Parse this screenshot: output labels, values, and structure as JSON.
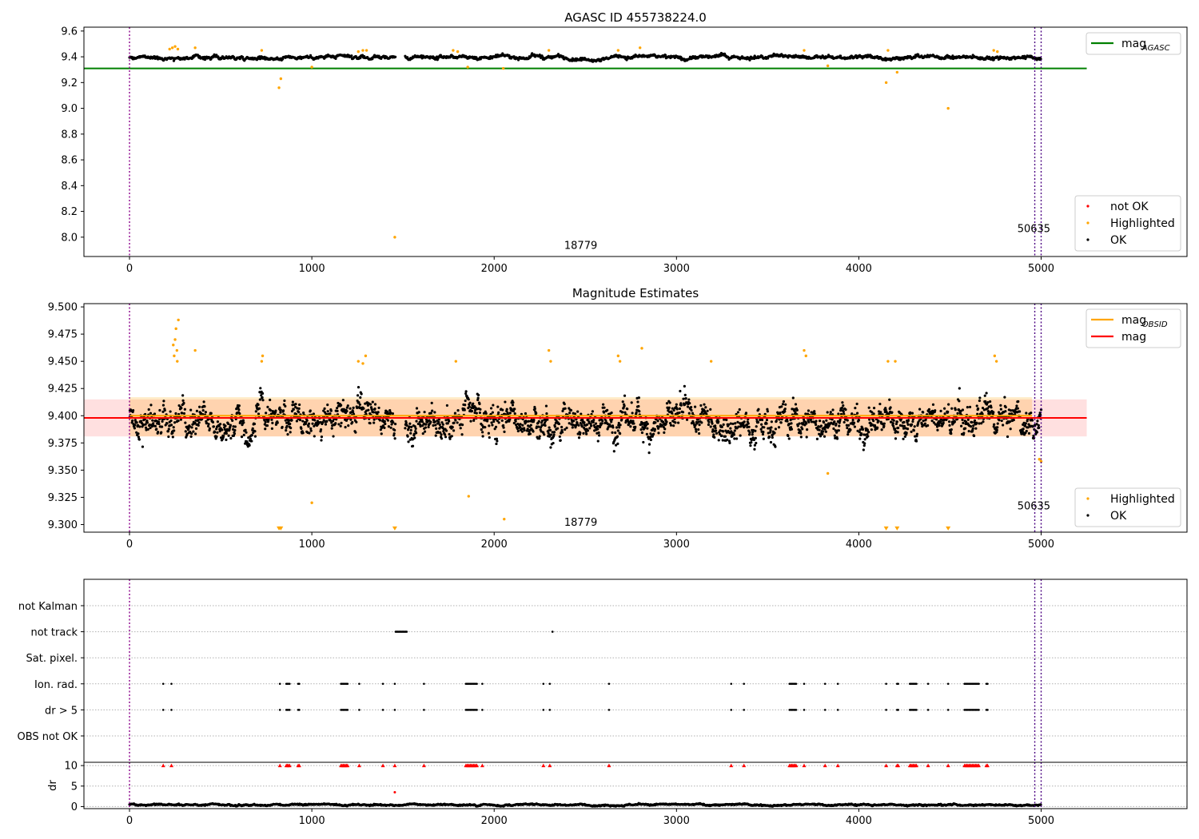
{
  "chart_data": [
    {
      "type": "scatter",
      "title": "AGASC ID 455738224.0",
      "xlim": [
        -250,
        5800
      ],
      "ylim": [
        7.85,
        9.63
      ],
      "xticks": [
        0,
        1000,
        2000,
        3000,
        4000,
        5000
      ],
      "yticks": [
        8.0,
        8.2,
        8.4,
        8.6,
        8.8,
        9.0,
        9.2,
        9.4,
        9.6
      ],
      "vlines": [
        0,
        4965,
        5000
      ],
      "hline": {
        "name": "mag_AGASC",
        "y": 9.31,
        "x_range": [
          -250,
          5250
        ],
        "color": "#008000"
      },
      "annotations": [
        {
          "text": "18779",
          "x": 2475,
          "y": 7.91
        },
        {
          "text": "50635",
          "x": 4960,
          "y": 8.04
        }
      ],
      "legend_top": {
        "placement": "top-right",
        "entries": [
          {
            "label": "mag",
            "sub": "AGASC",
            "color": "#008000"
          }
        ]
      },
      "legend_bottom": {
        "placement": "bottom-right",
        "entries": [
          {
            "label": "not OK",
            "color": "#ff0000"
          },
          {
            "label": "Highlighted",
            "color": "#ffa500"
          },
          {
            "label": "OK",
            "color": "#000000"
          }
        ]
      },
      "series": [
        {
          "name": "OK",
          "color": "#000000",
          "trend": {
            "base": 9.397,
            "noise": 0.022,
            "gaps": [
              [
                1460,
                1510
              ]
            ]
          }
        },
        {
          "name": "Highlighted",
          "color": "#ffa500",
          "points": [
            [
              220,
              9.46
            ],
            [
              235,
              9.47
            ],
            [
              250,
              9.48
            ],
            [
              265,
              9.46
            ],
            [
              360,
              9.47
            ],
            [
              725,
              9.45
            ],
            [
              820,
              9.16
            ],
            [
              830,
              9.23
            ],
            [
              1000,
              9.32
            ],
            [
              1255,
              9.44
            ],
            [
              1280,
              9.45
            ],
            [
              1300,
              9.45
            ],
            [
              1455,
              8.0
            ],
            [
              1775,
              9.45
            ],
            [
              1800,
              9.44
            ],
            [
              1855,
              9.32
            ],
            [
              2050,
              9.31
            ],
            [
              2300,
              9.45
            ],
            [
              2680,
              9.45
            ],
            [
              2800,
              9.47
            ],
            [
              3830,
              9.33
            ],
            [
              3700,
              9.45
            ],
            [
              4150,
              9.2
            ],
            [
              4160,
              9.45
            ],
            [
              4210,
              9.28
            ],
            [
              4490,
              9.0
            ],
            [
              4740,
              9.45
            ],
            [
              4760,
              9.44
            ]
          ]
        },
        {
          "name": "not OK",
          "color": "#ff0000",
          "points": []
        }
      ]
    },
    {
      "type": "scatter",
      "title": "Magnitude Estimates",
      "xlim": [
        -250,
        5800
      ],
      "ylim": [
        9.293,
        9.503
      ],
      "xticks": [
        0,
        1000,
        2000,
        3000,
        4000,
        5000
      ],
      "yticks": [
        9.3,
        9.325,
        9.35,
        9.375,
        9.4,
        9.425,
        9.45,
        9.475,
        9.5
      ],
      "vlines": [
        0,
        4965,
        5000
      ],
      "mag": {
        "y": 9.398,
        "band": [
          9.381,
          9.415
        ],
        "x_range": [
          -250,
          5250
        ],
        "color": "#ff0000"
      },
      "mag_obsid": {
        "y": 9.4,
        "band": [
          9.381,
          9.417
        ],
        "x_range": [
          0,
          4950
        ],
        "color": "#ffa500"
      },
      "annotations": [
        {
          "text": "18779",
          "x": 2475,
          "y": 9.299
        },
        {
          "text": "50635",
          "x": 4960,
          "y": 9.314
        }
      ],
      "legend_top": {
        "placement": "top-right",
        "entries": [
          {
            "label": "mag",
            "sub": "OBSID",
            "color": "#ffa500"
          },
          {
            "label": "mag",
            "sub": "",
            "color": "#ff0000"
          }
        ]
      },
      "legend_bottom": {
        "placement": "bottom-right",
        "entries": [
          {
            "label": "Highlighted",
            "color": "#ffa500"
          },
          {
            "label": "OK",
            "color": "#000000"
          }
        ]
      },
      "series": [
        {
          "name": "OK",
          "color": "#000000",
          "trend": {
            "base": 9.395,
            "noise": 0.022,
            "gaps": [
              [
                1460,
                1510
              ]
            ]
          }
        },
        {
          "name": "Highlighted",
          "color": "#ffa500",
          "points": [
            [
              240,
              9.465
            ],
            [
              245,
              9.455
            ],
            [
              250,
              9.47
            ],
            [
              255,
              9.48
            ],
            [
              260,
              9.46
            ],
            [
              262,
              9.45
            ],
            [
              268,
              9.488
            ],
            [
              360,
              9.46
            ],
            [
              725,
              9.45
            ],
            [
              730,
              9.455
            ],
            [
              1000,
              9.32
            ],
            [
              1255,
              9.45
            ],
            [
              1280,
              9.448
            ],
            [
              1295,
              9.455
            ],
            [
              1790,
              9.45
            ],
            [
              1860,
              9.326
            ],
            [
              2055,
              9.305
            ],
            [
              2300,
              9.46
            ],
            [
              2310,
              9.45
            ],
            [
              2680,
              9.455
            ],
            [
              2690,
              9.45
            ],
            [
              2810,
              9.462
            ],
            [
              3190,
              9.45
            ],
            [
              3700,
              9.46
            ],
            [
              3710,
              9.455
            ],
            [
              3830,
              9.347
            ],
            [
              4160,
              9.45
            ],
            [
              4200,
              9.45
            ],
            [
              4745,
              9.455
            ],
            [
              4755,
              9.45
            ],
            [
              4990,
              9.36
            ],
            [
              5000,
              9.358
            ]
          ]
        },
        {
          "name": "Highlighted (off-scale)",
          "color": "#ffa500",
          "marker": "triangle-down",
          "points": [
            [
              820,
              9.296
            ],
            [
              830,
              9.296
            ],
            [
              1455,
              9.296
            ],
            [
              4150,
              9.296
            ],
            [
              4210,
              9.296
            ],
            [
              4490,
              9.296
            ]
          ]
        }
      ]
    },
    {
      "type": "scatter",
      "title": "",
      "xlim": [
        -250,
        5800
      ],
      "vlines": [
        0,
        4965,
        5000
      ],
      "flag_categories": [
        "not Kalman",
        "not track",
        "Sat. pixel.",
        "Ion. rad.",
        "dr > 5",
        "OBS not OK"
      ],
      "flags": {
        "not track": [
          [
            1460,
            1520
          ],
          [
            2320,
            2320
          ]
        ],
        "Ion. rad.": [
          [
            185,
            185
          ],
          [
            230,
            230
          ],
          [
            825,
            830
          ],
          [
            860,
            880
          ],
          [
            925,
            935
          ],
          [
            1160,
            1200
          ],
          [
            1260,
            1260
          ],
          [
            1390,
            1390
          ],
          [
            1455,
            1460
          ],
          [
            1615,
            1620
          ],
          [
            1845,
            1905
          ],
          [
            1935,
            1935
          ],
          [
            2270,
            2270
          ],
          [
            2305,
            2305
          ],
          [
            2630,
            2630
          ],
          [
            3300,
            3300
          ],
          [
            3370,
            3375
          ],
          [
            3620,
            3660
          ],
          [
            3700,
            3700
          ],
          [
            3815,
            3815
          ],
          [
            3885,
            3885
          ],
          [
            4150,
            4150
          ],
          [
            4210,
            4220
          ],
          [
            4280,
            4320
          ],
          [
            4380,
            4380
          ],
          [
            4490,
            4490
          ],
          [
            4580,
            4660
          ],
          [
            4700,
            4710
          ]
        ],
        "dr > 5": [
          [
            185,
            185
          ],
          [
            230,
            230
          ],
          [
            825,
            830
          ],
          [
            860,
            880
          ],
          [
            925,
            935
          ],
          [
            1160,
            1200
          ],
          [
            1260,
            1260
          ],
          [
            1390,
            1390
          ],
          [
            1455,
            1460
          ],
          [
            1615,
            1620
          ],
          [
            1845,
            1905
          ],
          [
            1935,
            1935
          ],
          [
            2270,
            2270
          ],
          [
            2305,
            2305
          ],
          [
            2630,
            2630
          ],
          [
            3300,
            3300
          ],
          [
            3370,
            3375
          ],
          [
            3620,
            3660
          ],
          [
            3700,
            3700
          ],
          [
            3815,
            3815
          ],
          [
            3885,
            3885
          ],
          [
            4150,
            4150
          ],
          [
            4210,
            4220
          ],
          [
            4280,
            4320
          ],
          [
            4380,
            4380
          ],
          [
            4490,
            4490
          ],
          [
            4580,
            4660
          ],
          [
            4700,
            4710
          ]
        ]
      }
    },
    {
      "type": "scatter",
      "title": "",
      "xlabel": "",
      "ylabel": "dr",
      "xlim": [
        -250,
        5800
      ],
      "ylim": [
        -0.5,
        10.8
      ],
      "xticks": [
        0,
        1000,
        2000,
        3000,
        4000,
        5000
      ],
      "yticks": [
        0,
        5,
        10
      ],
      "vlines": [
        0,
        4965,
        5000
      ],
      "series": [
        {
          "name": "OK",
          "color": "#000000",
          "trend": {
            "base": 0.45,
            "noise": 0.3
          }
        },
        {
          "name": "off-scale",
          "color": "#ff0000",
          "marker": "triangle-up",
          "y": 10,
          "ranges": "flags.Ion. rad."
        },
        {
          "name": "outlier",
          "color": "#ff0000",
          "points": [
            [
              1455,
              3.5
            ]
          ]
        }
      ]
    }
  ]
}
